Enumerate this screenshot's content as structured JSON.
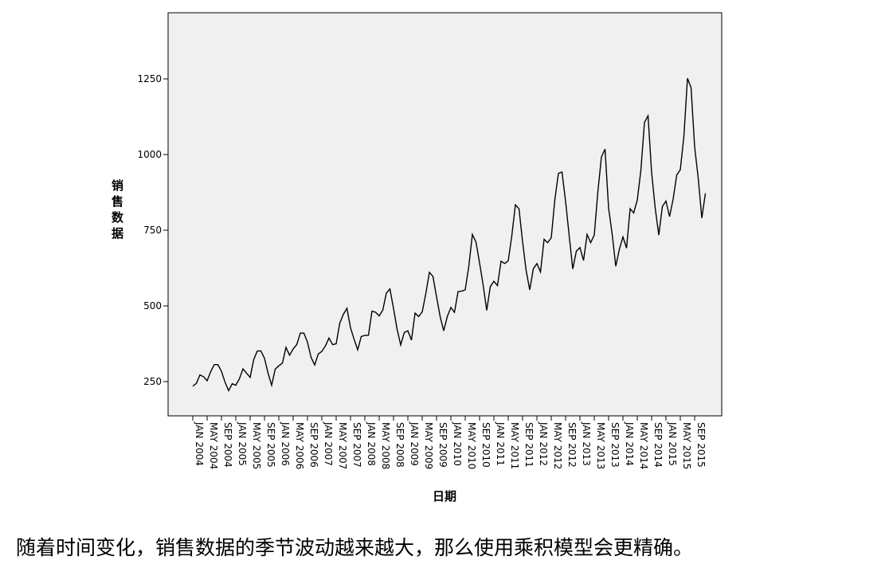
{
  "chart_data": {
    "type": "line",
    "title": "",
    "xlabel": "日期",
    "ylabel": "销售数据",
    "ylim": [
      0,
      1450
    ],
    "yticks": [
      250,
      500,
      750,
      1000,
      1250
    ],
    "ytick_labels": [
      "250",
      "500",
      "750",
      "1000",
      "1250"
    ],
    "grid": false,
    "legend": "none",
    "line_color": "#000000",
    "plot_background": "#f0f0f0",
    "x_start": "2004-01",
    "x_end": "2015-12",
    "xtick_labels": [
      "JAN 2004",
      "MAY 2004",
      "SEP 2004",
      "JAN 2005",
      "MAY 2005",
      "SEP 2005",
      "JAN 2006",
      "MAY 2006",
      "SEP 2006",
      "JAN 2007",
      "MAY 2007",
      "SEP 2007",
      "JAN 2008",
      "MAY 2008",
      "SEP 2008",
      "JAN 2009",
      "MAY 2009",
      "SEP 2009",
      "JAN 2010",
      "MAY 2010",
      "SEP 2010",
      "JAN 2011",
      "MAY 2011",
      "SEP 2011",
      "JAN 2012",
      "MAY 2012",
      "SEP 2012",
      "JAN 2013",
      "MAY 2013",
      "SEP 2013",
      "JAN 2014",
      "MAY 2014",
      "SEP 2014",
      "JAN 2015",
      "MAY 2015",
      "SEP 2015"
    ],
    "series": [
      {
        "name": "",
        "values": [
          235,
          244,
          272,
          266,
          253,
          283,
          306,
          306,
          284,
          248,
          220,
          243,
          238,
          259,
          292,
          278,
          264,
          323,
          351,
          351,
          327,
          278,
          238,
          291,
          302,
          311,
          363,
          337,
          358,
          372,
          410,
          410,
          380,
          330,
          305,
          341,
          350,
          368,
          394,
          372,
          375,
          443,
          472,
          492,
          428,
          390,
          355,
          399,
          403,
          403,
          483,
          479,
          467,
          486,
          542,
          556,
          491,
          423,
          371,
          412,
          418,
          387,
          476,
          465,
          480,
          540,
          611,
          597,
          530,
          465,
          418,
          465,
          495,
          479,
          547,
          549,
          553,
          631,
          736,
          711,
          642,
          569,
          485,
          564,
          581,
          567,
          648,
          640,
          649,
          732,
          834,
          821,
          712,
          616,
          553,
          623,
          640,
          612,
          720,
          709,
          725,
          851,
          938,
          942,
          845,
          732,
          622,
          681,
          693,
          650,
          736,
          709,
          734,
          877,
          992,
          1018,
          823,
          736,
          631,
          687,
          728,
          691,
          821,
          807,
          850,
          948,
          1106,
          1128,
          940,
          823,
          734,
          829,
          846,
          795,
          853,
          932,
          950,
          1060,
          1252,
          1221,
          1025,
          922,
          790,
          872
        ]
      }
    ]
  },
  "caption": "随着时间变化，销售数据的季节波动越来越大，那么使用乘积模型会更精确。"
}
